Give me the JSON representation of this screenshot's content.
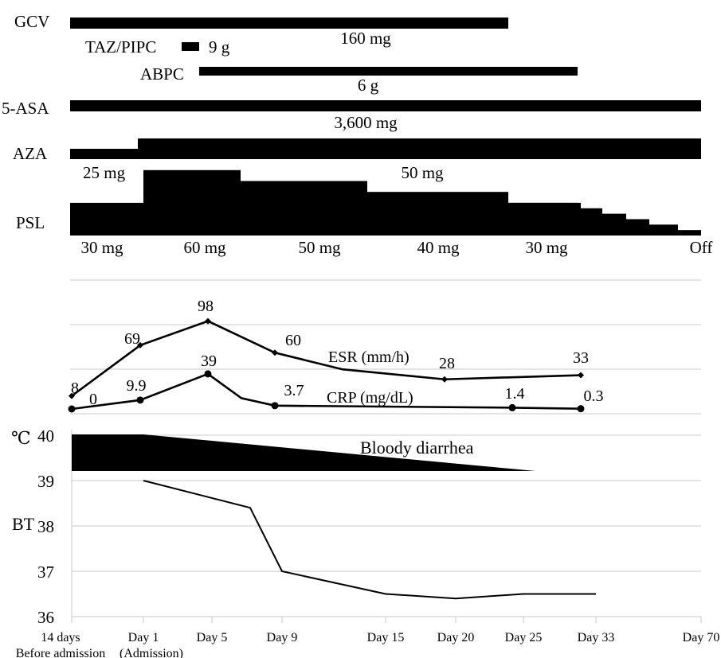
{
  "chart_data": [
    {
      "type": "gantt",
      "panel": "treatment",
      "drugs": [
        {
          "name": "GCV",
          "segments": [
            {
              "start": "14 days Before admission",
              "end": "Day 28",
              "dose": "160 mg"
            }
          ]
        },
        {
          "name": "TAZ/PIPC",
          "segments": [
            {
              "start": "Day 3",
              "end": "Day 4",
              "dose": "9 g"
            }
          ]
        },
        {
          "name": "ABPC",
          "segments": [
            {
              "start": "Day 4",
              "end": "Day 31",
              "dose": "6 g"
            }
          ]
        },
        {
          "name": "5-ASA",
          "segments": [
            {
              "start": "14 days Before admission",
              "end": "Day 70",
              "dose": "3,600 mg"
            }
          ]
        },
        {
          "name": "AZA",
          "segments": [
            {
              "start": "14 days Before admission",
              "end": "Day 0",
              "dose": "25 mg",
              "level": 25
            },
            {
              "start": "Day 0",
              "end": "Day 70",
              "dose": "50 mg",
              "level": 50
            }
          ]
        },
        {
          "name": "PSL",
          "segments": [
            {
              "start": "14 days Before admission",
              "end": "Day 1",
              "dose": "30 mg",
              "level": 30
            },
            {
              "start": "Day 1",
              "end": "Day 7",
              "dose": "60 mg",
              "level": 60
            },
            {
              "start": "Day 7",
              "end": "Day 12",
              "dose": "50 mg",
              "level": 50
            },
            {
              "start": "Day 12",
              "end": "Day 28",
              "dose": "40 mg",
              "level": 40
            },
            {
              "start": "Day 28",
              "end": "Day 33",
              "dose": "30 mg",
              "level": 30
            },
            {
              "start": "Day 33",
              "end": "Day 70",
              "dose": "Off",
              "taper_levels": [
                25,
                20,
                15,
                10,
                5
              ]
            }
          ]
        }
      ]
    },
    {
      "type": "line",
      "panel": "labs",
      "x": [
        "14 days Before admission",
        "Day 1",
        "Day 5",
        "Day 7",
        "Day 9",
        "Day 15",
        "Day 20",
        "Day 33"
      ],
      "series": [
        {
          "name": "ESR (mm/h)",
          "points": [
            {
              "x": "14 days Before admission",
              "y": 8,
              "label": "8"
            },
            {
              "x": "Day 1",
              "y": 69,
              "label": "69"
            },
            {
              "x": "Day 5",
              "y": 98,
              "label": "98"
            },
            {
              "x": "Day 9",
              "y": 60,
              "label": "60"
            },
            {
              "x": "Day 15",
              "y": 40
            },
            {
              "x": "Day 20",
              "y": 28,
              "label": "28"
            },
            {
              "x": "Day 33",
              "y": 33,
              "label": "33"
            }
          ]
        },
        {
          "name": "CRP (mg/dL)",
          "points": [
            {
              "x": "14 days Before admission",
              "y": 0,
              "label": "0"
            },
            {
              "x": "Day 1",
              "y": 9.9,
              "label": "9.9"
            },
            {
              "x": "Day 5",
              "y": 39,
              "label": "39"
            },
            {
              "x": "Day 7",
              "y": 12
            },
            {
              "x": "Day 9",
              "y": 3.7,
              "label": "3.7"
            },
            {
              "x": "Day 25",
              "y": 1.4,
              "label": "1.4"
            },
            {
              "x": "Day 33",
              "y": 0.3,
              "label": "0.3"
            }
          ]
        }
      ]
    },
    {
      "type": "line",
      "panel": "temperature",
      "y_unit": "℃",
      "ylabel": "BT",
      "yticks": [
        36,
        37,
        38,
        39,
        40
      ],
      "ylim": [
        36,
        40
      ],
      "grid": true,
      "annotation": {
        "label": "Bloody diarrhea",
        "start": "14 days Before admission",
        "end": "Day 25"
      },
      "x_ticks": [
        {
          "label": "14 days",
          "sublabel": "Before admission"
        },
        {
          "label": "Day 1",
          "sublabel": "(Admission)"
        },
        {
          "label": "Day 5"
        },
        {
          "label": "Day 9"
        },
        {
          "label": "Day 15"
        },
        {
          "label": "Day 20"
        },
        {
          "label": "Day 25"
        },
        {
          "label": "Day 33"
        },
        {
          "label": "Day 70"
        }
      ],
      "series": [
        {
          "points": [
            {
              "x": "Day 1",
              "y": 39.0
            },
            {
              "x": "Day 7",
              "y": 38.4
            },
            {
              "x": "Day 9",
              "y": 37.0
            },
            {
              "x": "Day 15",
              "y": 36.5
            },
            {
              "x": "Day 20",
              "y": 36.4
            },
            {
              "x": "Day 25",
              "y": 36.5
            },
            {
              "x": "Day 33",
              "y": 36.5
            }
          ]
        }
      ]
    }
  ]
}
